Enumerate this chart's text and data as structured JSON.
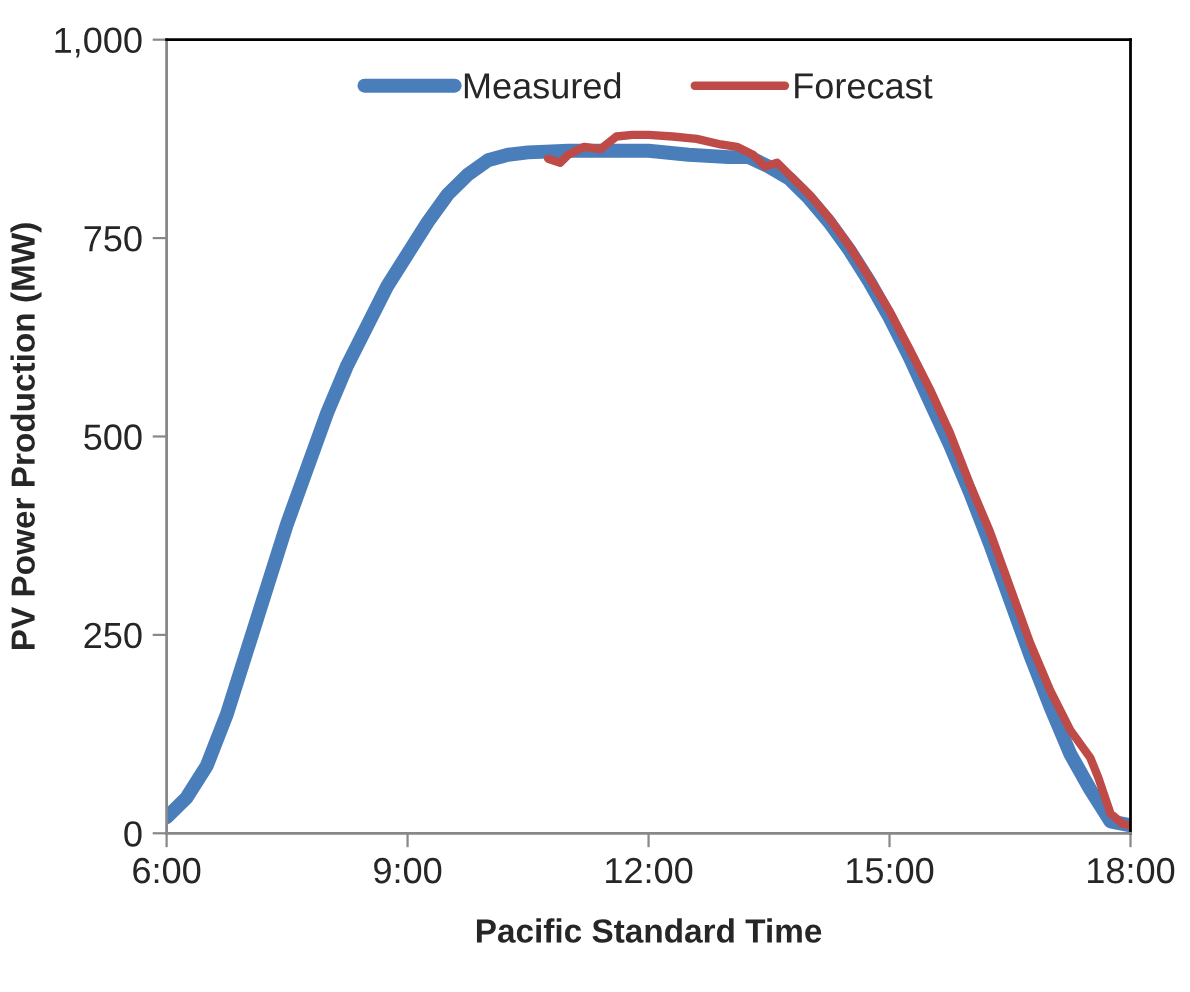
{
  "chart_data": {
    "type": "line",
    "xlabel": "Pacific Standard Time",
    "ylabel": "PV Power Production (MW)",
    "xlim": [
      6,
      18
    ],
    "xticks": [
      {
        "value": 6,
        "label": "6:00"
      },
      {
        "value": 9,
        "label": "9:00"
      },
      {
        "value": 12,
        "label": "12:00"
      },
      {
        "value": 15,
        "label": "15:00"
      },
      {
        "value": 18,
        "label": "18:00"
      }
    ],
    "ylim": [
      0,
      1000
    ],
    "yticks": [
      0,
      250,
      500,
      750,
      {
        "value": 1000,
        "label": "1,000"
      }
    ],
    "grid": false,
    "legend": "top",
    "marker": "none",
    "line_style": "solid",
    "series": [
      {
        "name": "Measured",
        "color": "#4a7ebb",
        "x": [
          6.0,
          6.25,
          6.5,
          6.75,
          7.0,
          7.25,
          7.5,
          7.75,
          8.0,
          8.25,
          8.5,
          8.75,
          9.0,
          9.25,
          9.5,
          9.75,
          10.0,
          10.25,
          10.5,
          11.0,
          11.5,
          12.0,
          12.5,
          13.0,
          13.25,
          13.5,
          13.75,
          14.0,
          14.25,
          14.5,
          14.75,
          15.0,
          15.25,
          15.5,
          15.75,
          16.0,
          16.25,
          16.5,
          16.75,
          17.0,
          17.25,
          17.5,
          17.75,
          18.0
        ],
        "values": [
          20,
          45,
          85,
          150,
          230,
          310,
          390,
          460,
          530,
          590,
          640,
          690,
          730,
          770,
          805,
          830,
          848,
          855,
          858,
          860,
          860,
          860,
          855,
          852,
          852,
          840,
          825,
          800,
          770,
          735,
          695,
          650,
          600,
          545,
          490,
          430,
          365,
          295,
          225,
          160,
          100,
          55,
          15,
          10
        ]
      },
      {
        "name": "Forecast",
        "color": "#be4b48",
        "x": [
          10.75,
          10.9,
          11.0,
          11.2,
          11.4,
          11.6,
          11.8,
          12.0,
          12.3,
          12.6,
          12.9,
          13.1,
          13.3,
          13.45,
          13.6,
          13.75,
          14.0,
          14.25,
          14.5,
          14.75,
          15.0,
          15.25,
          15.5,
          15.75,
          16.0,
          16.25,
          16.5,
          16.75,
          17.0,
          17.25,
          17.5,
          17.6,
          17.75,
          17.9,
          18.0
        ],
        "values": [
          850,
          845,
          855,
          865,
          862,
          878,
          880,
          880,
          878,
          875,
          868,
          865,
          855,
          840,
          845,
          830,
          805,
          775,
          740,
          700,
          658,
          610,
          560,
          505,
          440,
          380,
          310,
          240,
          180,
          130,
          95,
          70,
          25,
          12,
          10
        ]
      }
    ]
  }
}
